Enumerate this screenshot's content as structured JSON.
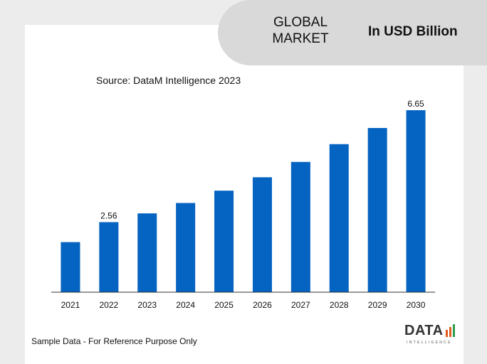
{
  "header": {
    "market_line1": "GLOBAL",
    "market_line2": "MARKET",
    "unit": "In USD Billion"
  },
  "source": "Source: DataM Intelligence  2023",
  "footnote": "Sample Data - For Reference Purpose Only",
  "logo": {
    "word": "DATA",
    "sub": "INTELLIGENCE"
  },
  "colors": {
    "bar": "#0563c1",
    "axis": "#333333",
    "header_bg": "#d9d9d9"
  },
  "chart_data": {
    "type": "bar",
    "categories": [
      "2021",
      "2022",
      "2023",
      "2024",
      "2025",
      "2026",
      "2027",
      "2028",
      "2029",
      "2030"
    ],
    "values": [
      1.83,
      2.56,
      2.88,
      3.26,
      3.71,
      4.2,
      4.76,
      5.41,
      6.0,
      6.65
    ],
    "data_labels": {
      "1": "2.56",
      "9": "6.65"
    },
    "ylim": [
      0,
      7.3
    ],
    "grid": false,
    "legend": "none"
  }
}
